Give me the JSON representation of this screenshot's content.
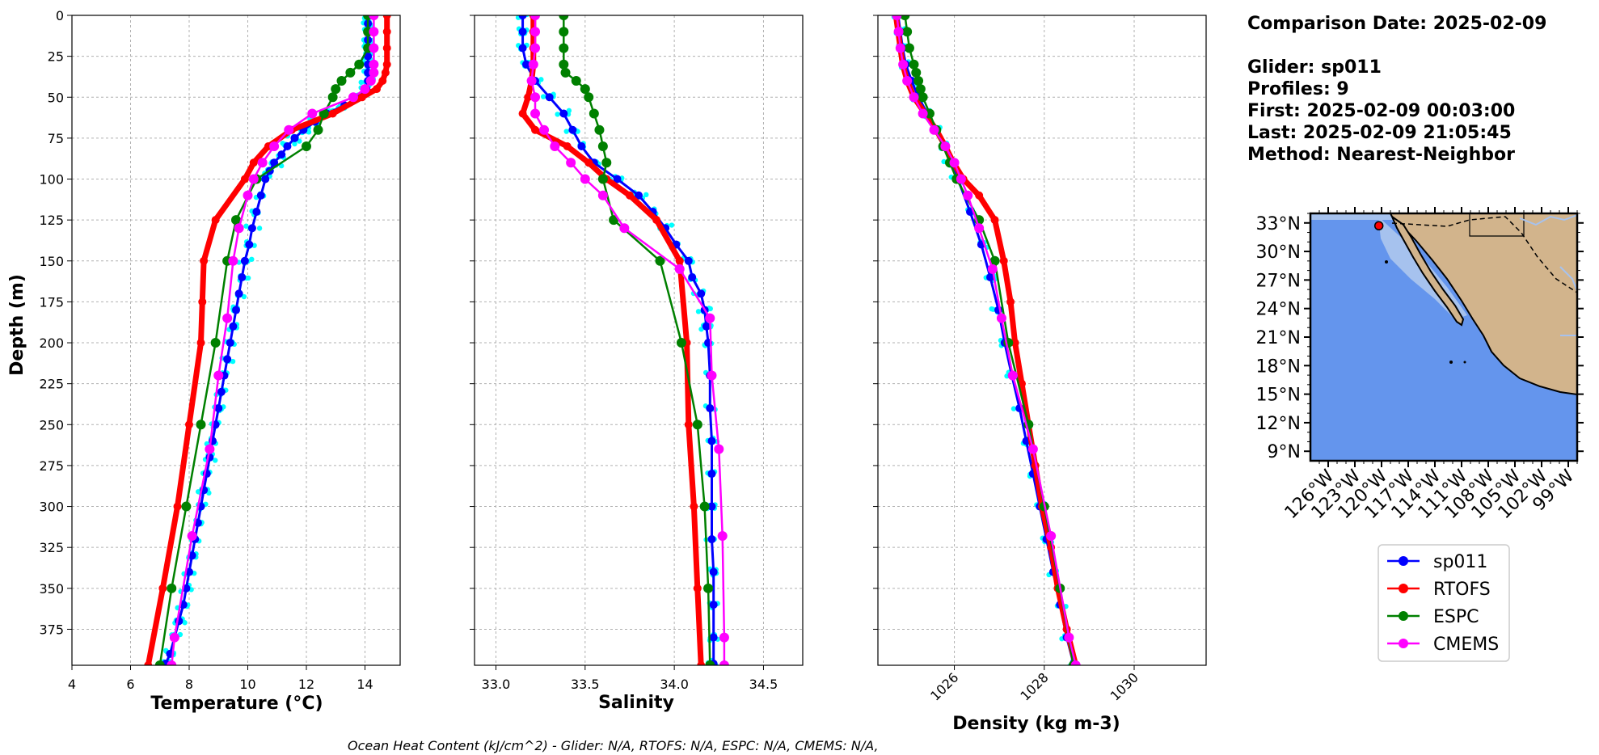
{
  "info": {
    "comparison_date": "Comparison Date: 2025-02-09",
    "glider": "Glider: sp011",
    "profiles": "Profiles: 9",
    "first": "First: 2025-02-09 00:03:00",
    "last": "Last: 2025-02-09 21:05:45",
    "method": "Method: Nearest-Neighbor"
  },
  "footer": "Ocean Heat Content (kJ/cm^2) - Glider: N/A,  RTOFS: N/A,  ESPC: N/A,  CMEMS: N/A,",
  "colors": {
    "glider": "#0000ff",
    "glider_raw": "#00ffff",
    "rtofs": "#ff0000",
    "espc": "#008000",
    "cmems": "#ff00ff",
    "ocean": "#6495ed",
    "shelf": "#a6c2ee",
    "land": "#d2b48c"
  },
  "legend": [
    {
      "label": "sp011",
      "color": "#0000ff"
    },
    {
      "label": "RTOFS",
      "color": "#ff0000"
    },
    {
      "label": "ESPC",
      "color": "#008000"
    },
    {
      "label": "CMEMS",
      "color": "#ff00ff"
    }
  ],
  "map": {
    "lat_labels": [
      "33°N",
      "30°N",
      "27°N",
      "24°N",
      "21°N",
      "18°N",
      "15°N",
      "12°N",
      "9°N"
    ],
    "lon_labels": [
      "126°W",
      "123°W",
      "120°W",
      "117°W",
      "114°W",
      "111°W",
      "108°W",
      "105°W",
      "102°W",
      "99°W"
    ],
    "glider_position": {
      "lon": -120.3,
      "lat": 32.7
    }
  },
  "chart_data": [
    {
      "type": "line",
      "xlabel": "Temperature (°C)",
      "ylabel": "Depth (m)",
      "xlim": [
        4,
        15.2
      ],
      "ylim": [
        397,
        0
      ],
      "xticks": [
        "4",
        "6",
        "8",
        "10",
        "12",
        "14"
      ],
      "yticks": [
        "0",
        "25",
        "50",
        "75",
        "100",
        "125",
        "150",
        "175",
        "200",
        "225",
        "250",
        "275",
        "300",
        "325",
        "350",
        "375"
      ],
      "grid": true,
      "series": [
        {
          "name": "sp011",
          "depth": [
            0,
            5,
            10,
            15,
            20,
            25,
            30,
            35,
            40,
            45,
            50,
            55,
            60,
            65,
            70,
            75,
            80,
            85,
            90,
            95,
            100,
            110,
            120,
            130,
            140,
            150,
            160,
            170,
            180,
            190,
            200,
            210,
            220,
            230,
            240,
            250,
            260,
            270,
            280,
            290,
            300,
            310,
            320,
            330,
            340,
            350,
            360,
            370,
            380,
            390,
            396
          ],
          "values": [
            14.1,
            14.1,
            14.1,
            14.1,
            14.1,
            14.1,
            14.1,
            14.1,
            14.1,
            14.05,
            13.8,
            13.3,
            12.7,
            12.3,
            11.9,
            11.6,
            11.35,
            11.15,
            10.9,
            10.75,
            10.6,
            10.45,
            10.3,
            10.15,
            10.05,
            9.9,
            9.8,
            9.7,
            9.6,
            9.5,
            9.4,
            9.3,
            9.2,
            9.1,
            9.0,
            8.9,
            8.8,
            8.7,
            8.6,
            8.5,
            8.4,
            8.3,
            8.2,
            8.1,
            8.0,
            7.9,
            7.8,
            7.65,
            7.5,
            7.35,
            7.2
          ]
        },
        {
          "name": "RTOFS",
          "depth": [
            0,
            10,
            20,
            30,
            35,
            40,
            45,
            50,
            60,
            70,
            80,
            90,
            100,
            125,
            150,
            175,
            200,
            250,
            300,
            350,
            397
          ],
          "values": [
            14.75,
            14.75,
            14.75,
            14.75,
            14.7,
            14.6,
            14.4,
            13.9,
            12.9,
            11.5,
            10.7,
            10.2,
            9.9,
            8.9,
            8.5,
            8.45,
            8.4,
            8.0,
            7.6,
            7.1,
            6.6
          ]
        },
        {
          "name": "ESPC",
          "depth": [
            0,
            10,
            20,
            30,
            35,
            40,
            45,
            50,
            60,
            70,
            80,
            100,
            125,
            150,
            200,
            250,
            300,
            350,
            397
          ],
          "values": [
            14.1,
            14.1,
            14.1,
            13.8,
            13.5,
            13.2,
            13.0,
            12.9,
            12.6,
            12.4,
            12.0,
            10.3,
            9.6,
            9.3,
            8.9,
            8.4,
            7.9,
            7.4,
            7.0
          ]
        },
        {
          "name": "CMEMS",
          "depth": [
            0,
            10,
            20,
            30,
            35,
            40,
            45,
            50,
            60,
            70,
            80,
            90,
            100,
            110,
            130,
            150,
            185,
            220,
            265,
            318,
            380,
            397
          ],
          "values": [
            14.3,
            14.3,
            14.3,
            14.3,
            14.3,
            14.2,
            14.0,
            13.6,
            12.2,
            11.4,
            10.9,
            10.5,
            10.2,
            10.0,
            9.7,
            9.5,
            9.3,
            9.0,
            8.7,
            8.1,
            7.5,
            7.4
          ]
        }
      ]
    },
    {
      "type": "line",
      "xlabel": "Salinity",
      "xlim": [
        32.88,
        34.72
      ],
      "ylim": [
        397,
        0
      ],
      "xticks": [
        "33.0",
        "33.5",
        "34.0",
        "34.5"
      ],
      "grid": true,
      "series": [
        {
          "name": "sp011",
          "depth": [
            0,
            10,
            20,
            30,
            40,
            50,
            60,
            70,
            80,
            90,
            100,
            110,
            120,
            130,
            140,
            150,
            160,
            170,
            180,
            190,
            200,
            220,
            240,
            260,
            280,
            300,
            320,
            340,
            360,
            380,
            396
          ],
          "values": [
            33.15,
            33.15,
            33.15,
            33.17,
            33.22,
            33.3,
            33.38,
            33.43,
            33.48,
            33.55,
            33.68,
            33.8,
            33.88,
            33.95,
            34.01,
            34.08,
            34.1,
            34.15,
            34.17,
            34.18,
            34.19,
            34.2,
            34.2,
            34.21,
            34.21,
            34.21,
            34.21,
            34.22,
            34.22,
            34.22,
            34.22
          ]
        },
        {
          "name": "RTOFS",
          "depth": [
            0,
            10,
            20,
            30,
            40,
            50,
            60,
            70,
            80,
            90,
            100,
            110,
            125,
            150,
            200,
            250,
            300,
            350,
            397
          ],
          "values": [
            33.21,
            33.21,
            33.21,
            33.21,
            33.2,
            33.18,
            33.15,
            33.22,
            33.4,
            33.52,
            33.62,
            33.75,
            33.9,
            34.03,
            34.07,
            34.08,
            34.11,
            34.13,
            34.15
          ]
        },
        {
          "name": "ESPC",
          "depth": [
            0,
            10,
            20,
            30,
            35,
            40,
            45,
            50,
            60,
            70,
            80,
            90,
            100,
            125,
            150,
            200,
            250,
            300,
            350,
            397
          ],
          "values": [
            33.38,
            33.38,
            33.38,
            33.38,
            33.39,
            33.45,
            33.5,
            33.52,
            33.55,
            33.58,
            33.6,
            33.62,
            33.6,
            33.66,
            33.92,
            34.04,
            34.13,
            34.17,
            34.19,
            34.2
          ]
        },
        {
          "name": "CMEMS",
          "depth": [
            0,
            10,
            20,
            30,
            40,
            50,
            60,
            70,
            80,
            90,
            100,
            110,
            130,
            155,
            185,
            220,
            265,
            318,
            380,
            397
          ],
          "values": [
            33.22,
            33.22,
            33.22,
            33.21,
            33.2,
            33.22,
            33.22,
            33.27,
            33.33,
            33.42,
            33.5,
            33.6,
            33.72,
            34.03,
            34.2,
            34.21,
            34.25,
            34.27,
            34.28,
            34.28
          ]
        }
      ]
    },
    {
      "type": "line",
      "xlabel": "Density (kg m-3)",
      "xlim": [
        1024.3,
        1031.6
      ],
      "ylim": [
        397,
        0
      ],
      "xticks": [
        "1026",
        "1028",
        "1030"
      ],
      "grid": true,
      "series": [
        {
          "name": "sp011",
          "depth": [
            0,
            10,
            20,
            30,
            40,
            50,
            60,
            70,
            80,
            90,
            100,
            120,
            140,
            160,
            180,
            200,
            220,
            240,
            260,
            280,
            300,
            320,
            340,
            360,
            380,
            396
          ],
          "values": [
            1024.75,
            1024.8,
            1024.85,
            1024.92,
            1025.05,
            1025.2,
            1025.4,
            1025.6,
            1025.78,
            1025.92,
            1026.08,
            1026.35,
            1026.6,
            1026.8,
            1026.98,
            1027.12,
            1027.28,
            1027.45,
            1027.6,
            1027.75,
            1027.9,
            1028.05,
            1028.2,
            1028.35,
            1028.5,
            1028.65
          ]
        },
        {
          "name": "RTOFS",
          "depth": [
            0,
            10,
            20,
            30,
            40,
            50,
            60,
            70,
            80,
            90,
            100,
            110,
            125,
            150,
            175,
            200,
            225,
            250,
            275,
            300,
            325,
            350,
            375,
            397
          ],
          "values": [
            1024.7,
            1024.75,
            1024.8,
            1024.85,
            1024.95,
            1025.1,
            1025.35,
            1025.6,
            1025.8,
            1025.98,
            1026.2,
            1026.55,
            1026.9,
            1027.1,
            1027.25,
            1027.35,
            1027.5,
            1027.65,
            1027.8,
            1027.95,
            1028.15,
            1028.3,
            1028.5,
            1028.7
          ]
        },
        {
          "name": "ESPC",
          "depth": [
            0,
            10,
            20,
            30,
            35,
            40,
            45,
            50,
            60,
            70,
            80,
            90,
            100,
            125,
            150,
            200,
            250,
            300,
            350,
            397
          ],
          "values": [
            1024.9,
            1024.95,
            1025.0,
            1025.1,
            1025.15,
            1025.2,
            1025.25,
            1025.3,
            1025.45,
            1025.6,
            1025.75,
            1025.9,
            1026.05,
            1026.55,
            1026.9,
            1027.2,
            1027.65,
            1028.0,
            1028.35,
            1028.65
          ]
        },
        {
          "name": "CMEMS",
          "depth": [
            0,
            10,
            20,
            30,
            40,
            50,
            60,
            70,
            80,
            90,
            100,
            110,
            130,
            155,
            185,
            220,
            265,
            318,
            380,
            397
          ],
          "values": [
            1024.72,
            1024.76,
            1024.8,
            1024.86,
            1024.95,
            1025.1,
            1025.3,
            1025.55,
            1025.8,
            1026.0,
            1026.15,
            1026.3,
            1026.55,
            1026.85,
            1027.05,
            1027.3,
            1027.75,
            1028.15,
            1028.55,
            1028.7
          ]
        }
      ]
    }
  ]
}
